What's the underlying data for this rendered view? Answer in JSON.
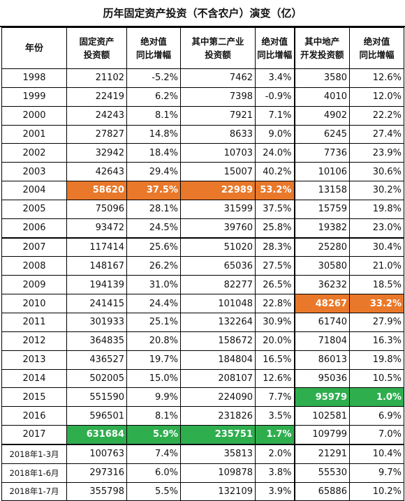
{
  "title": "历年固定资产投资（不含农户）演变（亿）",
  "headers": [
    [
      "年份"
    ],
    [
      "固定资产",
      "投资额"
    ],
    [
      "绝对值",
      "同比增幅"
    ],
    [
      "其中第二产业",
      "投资额"
    ],
    [
      "绝对值",
      "同比增幅"
    ],
    [
      "其中地产",
      "开发投资额"
    ],
    [
      "绝对值",
      "同比增幅"
    ]
  ],
  "colors": {
    "orange": "#e9782a",
    "green": "#2fae4e"
  },
  "rows": [
    [
      "1998",
      "21102",
      "-5.2%",
      "7462",
      "3.4%",
      "3580",
      "12.6%"
    ],
    [
      "1999",
      "22419",
      "6.2%",
      "7398",
      "-0.9%",
      "4010",
      "12.0%"
    ],
    [
      "2000",
      "24243",
      "8.1%",
      "7921",
      "7.1%",
      "4902",
      "22.2%"
    ],
    [
      "2001",
      "27827",
      "14.8%",
      "8633",
      "9.0%",
      "6245",
      "27.4%"
    ],
    [
      "2002",
      "32942",
      "18.4%",
      "10703",
      "24.0%",
      "7736",
      "23.9%"
    ],
    [
      "2003",
      "42643",
      "29.4%",
      "15007",
      "40.2%",
      "10106",
      "30.6%"
    ],
    [
      "2004",
      "58620",
      "37.5%",
      "22989",
      "53.2%",
      "13158",
      "30.2%"
    ],
    [
      "2005",
      "75096",
      "28.1%",
      "31599",
      "37.5%",
      "15759",
      "19.8%"
    ],
    [
      "2006",
      "93472",
      "24.5%",
      "39760",
      "25.8%",
      "19382",
      "23.0%"
    ],
    [
      "2007",
      "117414",
      "25.6%",
      "51020",
      "28.3%",
      "25280",
      "30.4%"
    ],
    [
      "2008",
      "148167",
      "26.2%",
      "65036",
      "27.5%",
      "30580",
      "21.0%"
    ],
    [
      "2009",
      "194139",
      "31.0%",
      "82277",
      "26.5%",
      "36232",
      "18.5%"
    ],
    [
      "2010",
      "241415",
      "24.4%",
      "101048",
      "22.8%",
      "48267",
      "33.2%"
    ],
    [
      "2011",
      "301933",
      "25.1%",
      "132264",
      "30.9%",
      "61740",
      "27.9%"
    ],
    [
      "2012",
      "364835",
      "20.8%",
      "158672",
      "20.0%",
      "71804",
      "16.3%"
    ],
    [
      "2013",
      "436527",
      "19.7%",
      "184804",
      "16.5%",
      "86013",
      "19.8%"
    ],
    [
      "2014",
      "502005",
      "15.0%",
      "208107",
      "12.6%",
      "95036",
      "10.5%"
    ],
    [
      "2015",
      "551590",
      "9.9%",
      "224090",
      "7.7%",
      "95979",
      "1.0%"
    ],
    [
      "2016",
      "596501",
      "8.1%",
      "231826",
      "3.5%",
      "102581",
      "6.9%"
    ],
    [
      "2017",
      "631684",
      "5.9%",
      "235751",
      "1.7%",
      "109799",
      "7.0%"
    ],
    [
      "2018年1-3月",
      "100763",
      "7.4%",
      "35813",
      "2.0%",
      "21291",
      "10.4%"
    ],
    [
      "2018年1-6月",
      "297316",
      "6.0%",
      "109878",
      "3.8%",
      "55530",
      "9.7%"
    ],
    [
      "2018年1-7月",
      "355798",
      "5.5%",
      "132109",
      "3.9%",
      "65886",
      "10.2%"
    ]
  ],
  "highlights": [
    {
      "row": 6,
      "cols": [
        1,
        2,
        3,
        4
      ],
      "color": "orange"
    },
    {
      "row": 12,
      "cols": [
        5,
        6
      ],
      "color": "orange"
    },
    {
      "row": 17,
      "cols": [
        5,
        6
      ],
      "color": "green"
    },
    {
      "row": 19,
      "cols": [
        1,
        2,
        3,
        4
      ],
      "color": "green"
    }
  ]
}
